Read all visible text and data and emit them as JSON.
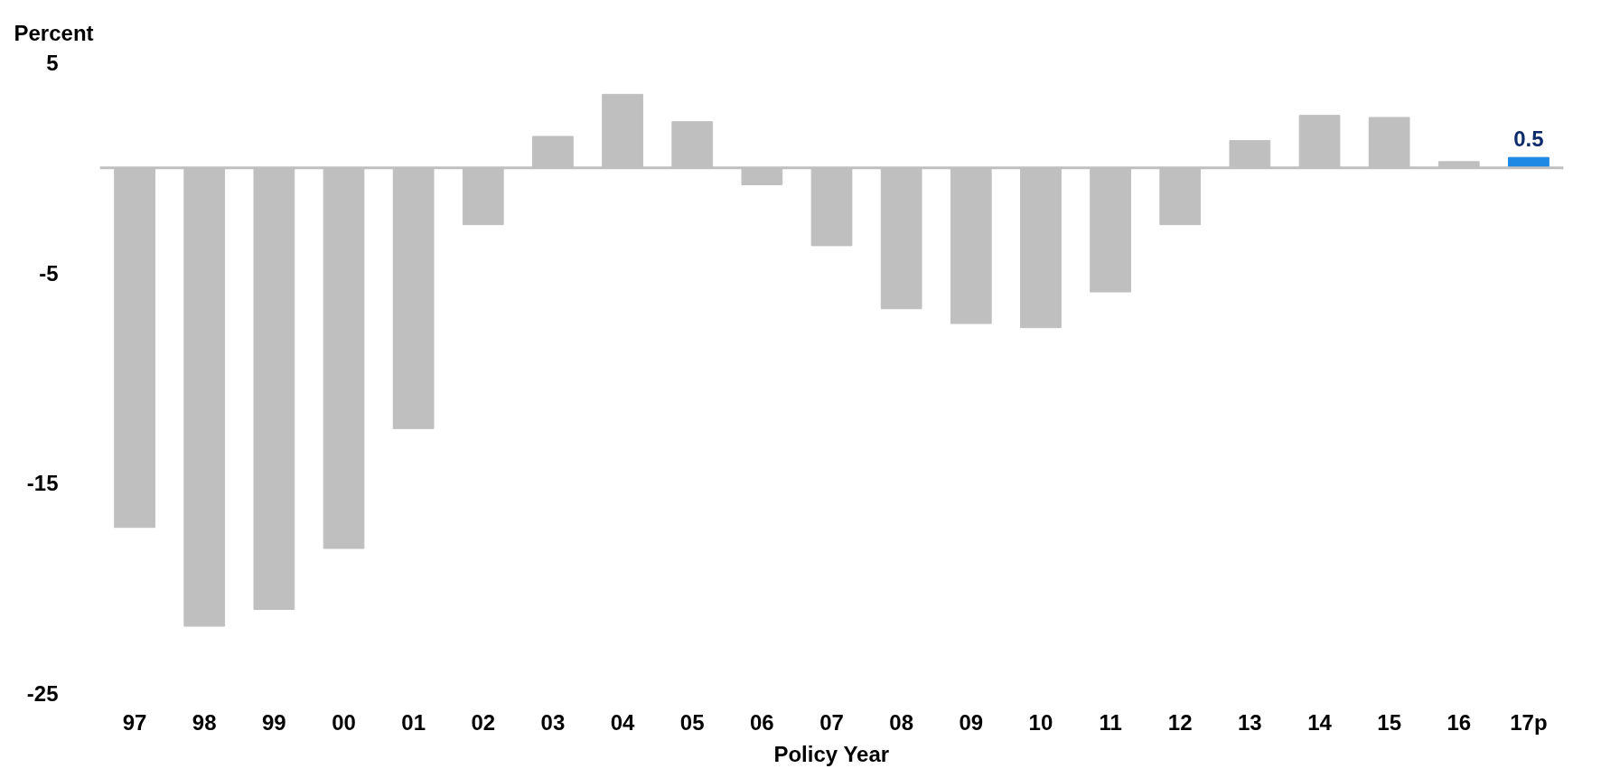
{
  "chart_data": {
    "type": "bar",
    "ylabel": "Percent",
    "xlabel": "Policy Year",
    "categories": [
      "97",
      "98",
      "99",
      "00",
      "01",
      "02",
      "03",
      "04",
      "05",
      "06",
      "07",
      "08",
      "09",
      "10",
      "11",
      "12",
      "13",
      "14",
      "15",
      "16",
      "17p"
    ],
    "values": [
      -17.1,
      -21.8,
      -21.0,
      -18.1,
      -12.4,
      -2.7,
      1.5,
      3.5,
      2.2,
      -0.8,
      -3.7,
      -6.7,
      -7.4,
      -7.6,
      -5.9,
      -2.7,
      1.3,
      2.5,
      2.4,
      0.3,
      0.5
    ],
    "colors": [
      "#bfbfbf",
      "#bfbfbf",
      "#bfbfbf",
      "#bfbfbf",
      "#bfbfbf",
      "#bfbfbf",
      "#bfbfbf",
      "#bfbfbf",
      "#bfbfbf",
      "#bfbfbf",
      "#bfbfbf",
      "#bfbfbf",
      "#bfbfbf",
      "#bfbfbf",
      "#bfbfbf",
      "#bfbfbf",
      "#bfbfbf",
      "#bfbfbf",
      "#bfbfbf",
      "#bfbfbf",
      "#1e88e5"
    ],
    "value_labels": [
      null,
      null,
      null,
      null,
      null,
      null,
      null,
      null,
      null,
      null,
      null,
      null,
      null,
      null,
      null,
      null,
      null,
      null,
      null,
      null,
      "0.5"
    ],
    "ylim": [
      -25,
      5
    ],
    "yticks": [
      5,
      -5,
      -15,
      -25
    ],
    "grid": false
  }
}
